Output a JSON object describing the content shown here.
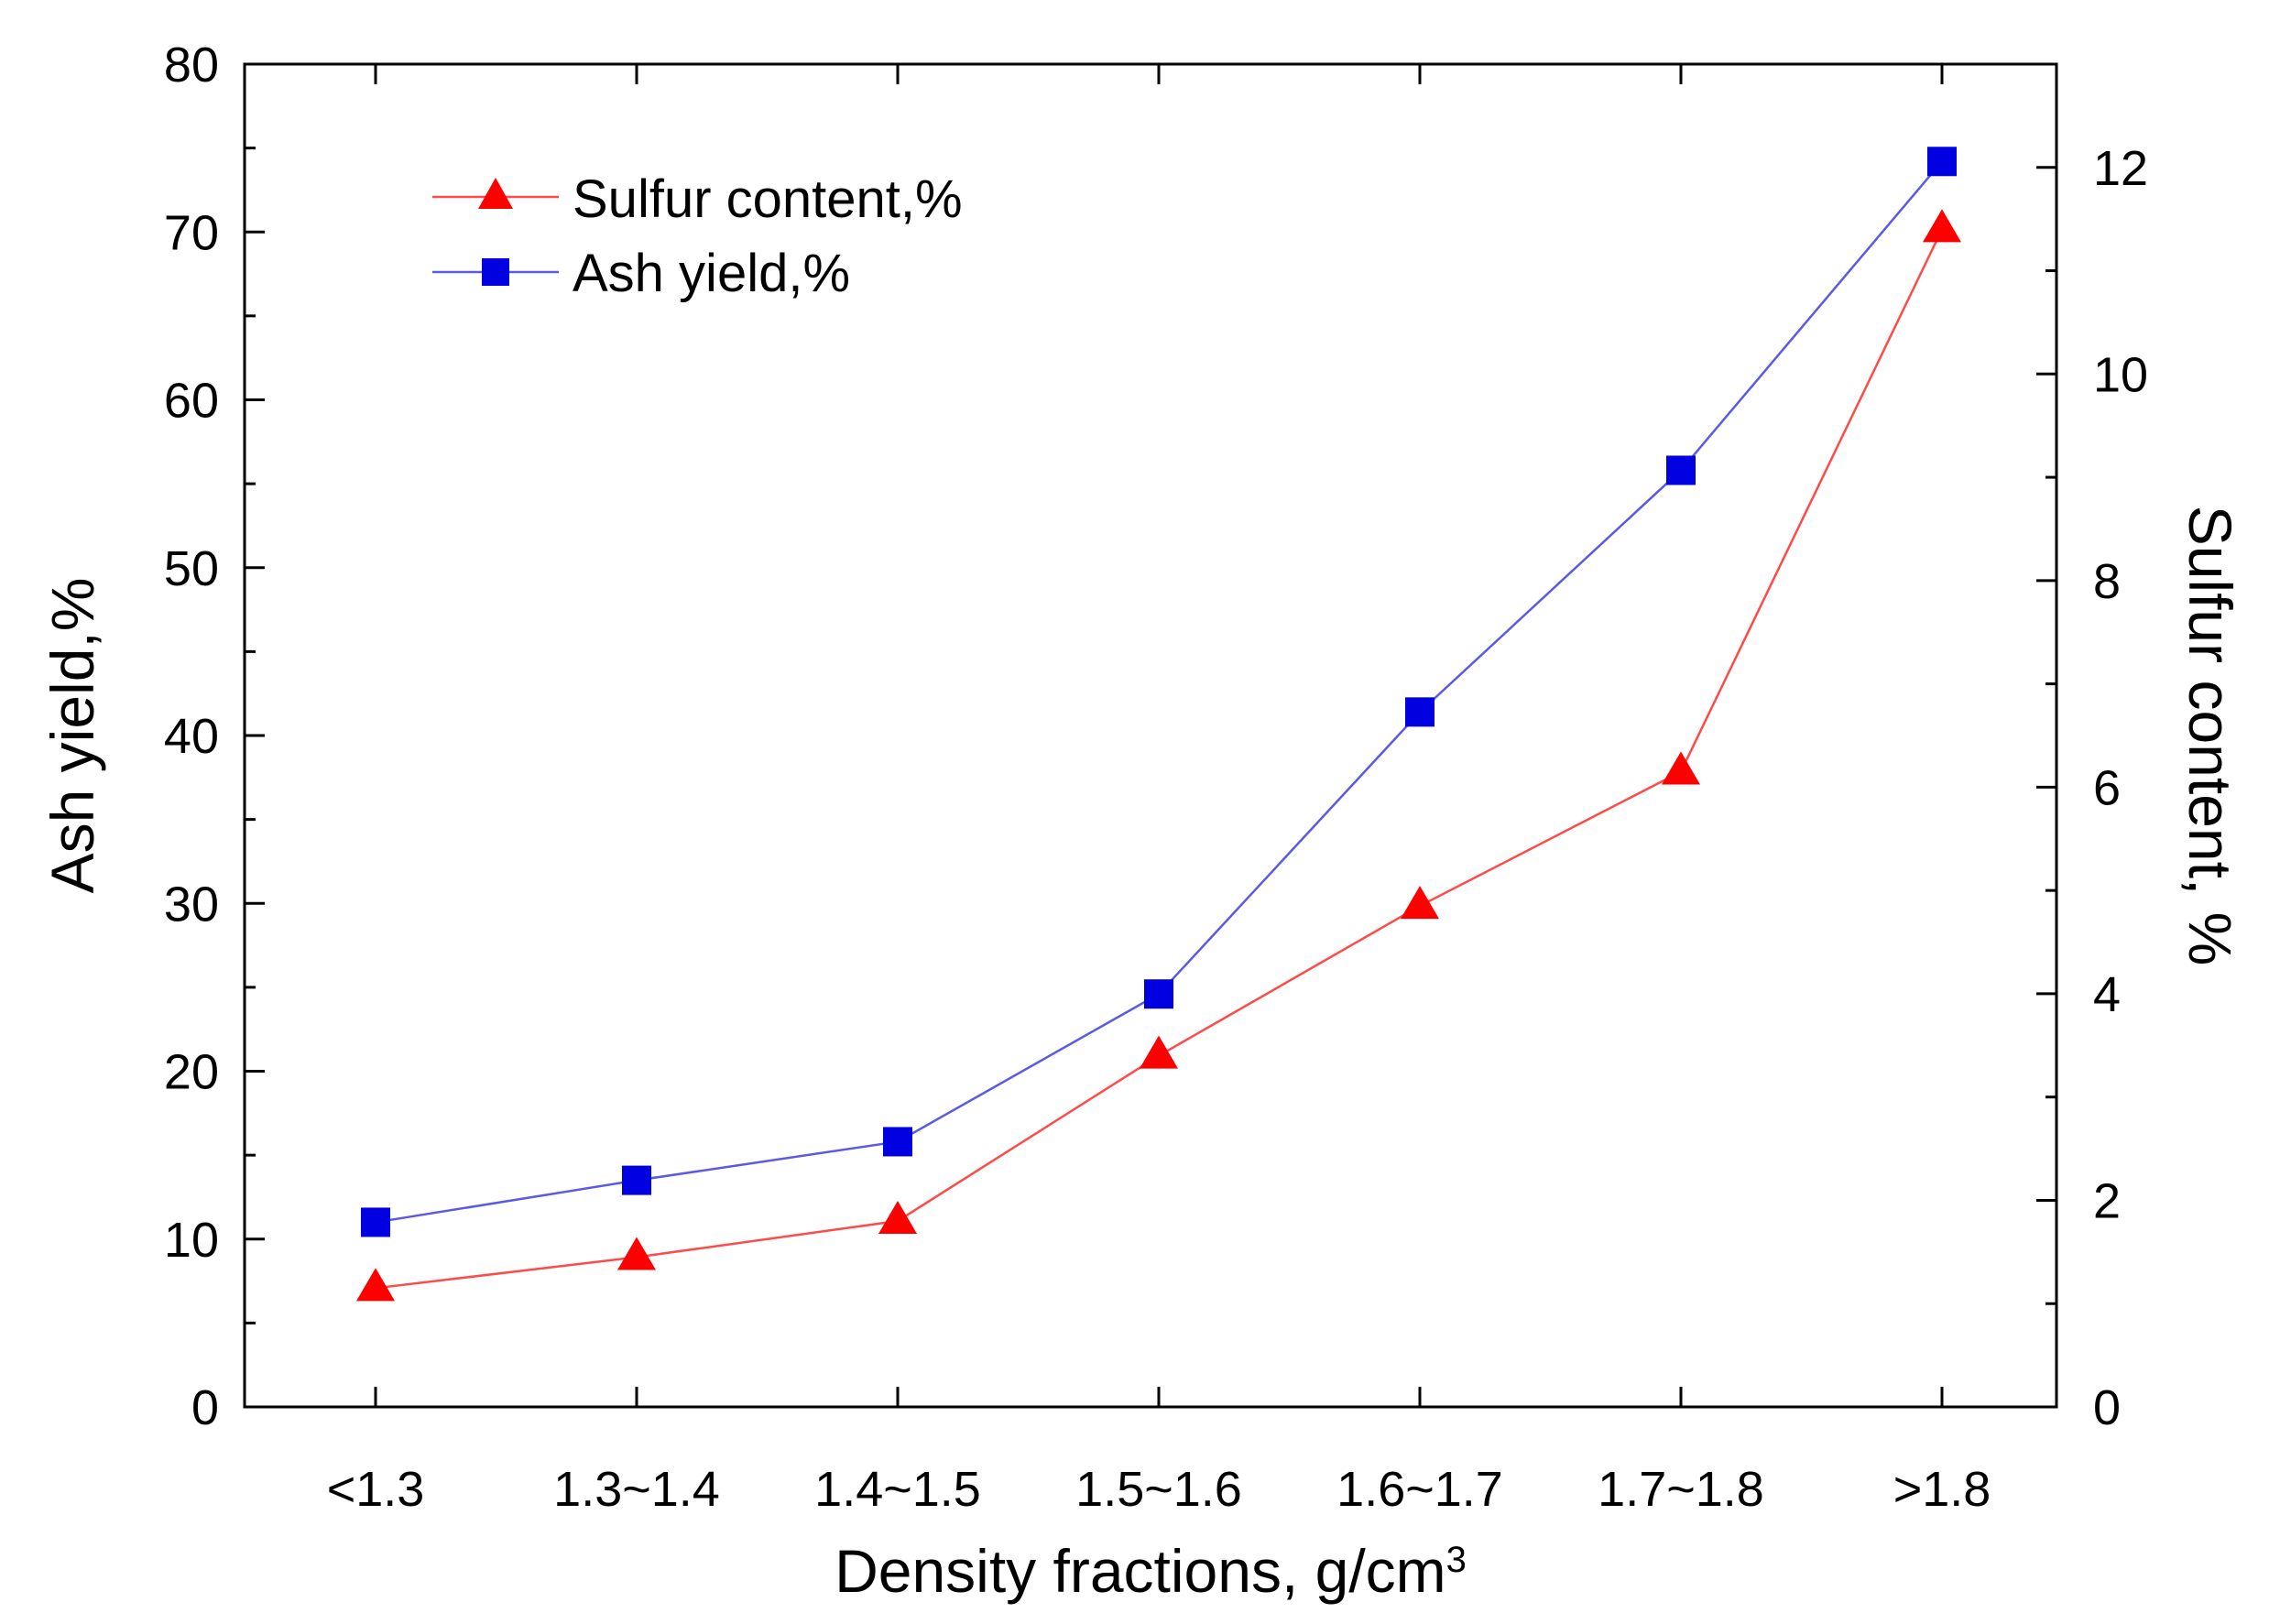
{
  "chart_data": {
    "type": "line",
    "categories": [
      "<1.3",
      "1.3~1.4",
      "1.4~1.5",
      "1.5~1.6",
      "1.6~1.7",
      "1.7~1.8",
      ">1.8"
    ],
    "xlabel": "Density fractions, g/cm",
    "xlabel_sup": "3",
    "ylabel_left": "Ash yield,%",
    "ylabel_right": "Sulfur content, %",
    "ylim_left": [
      0,
      80
    ],
    "yticks_left": [
      0,
      10,
      20,
      30,
      40,
      50,
      60,
      70,
      80
    ],
    "ylim_right": [
      0,
      13
    ],
    "yticks_right": [
      0,
      2,
      4,
      6,
      8,
      10,
      12
    ],
    "series": [
      {
        "name": "Sulfur content,%",
        "axis": "right",
        "marker": "triangle",
        "line_color": "#ff4a4a",
        "marker_color": "#ff0000",
        "values": [
          1.15,
          1.45,
          1.8,
          3.4,
          4.85,
          6.15,
          11.4
        ]
      },
      {
        "name": "Ash yield,%",
        "axis": "left",
        "marker": "square",
        "line_color": "#5a5ae6",
        "marker_color": "#0000e0",
        "values": [
          11.0,
          13.5,
          15.8,
          24.6,
          41.4,
          55.8,
          74.2
        ]
      }
    ],
    "legend_position": "top-left"
  }
}
